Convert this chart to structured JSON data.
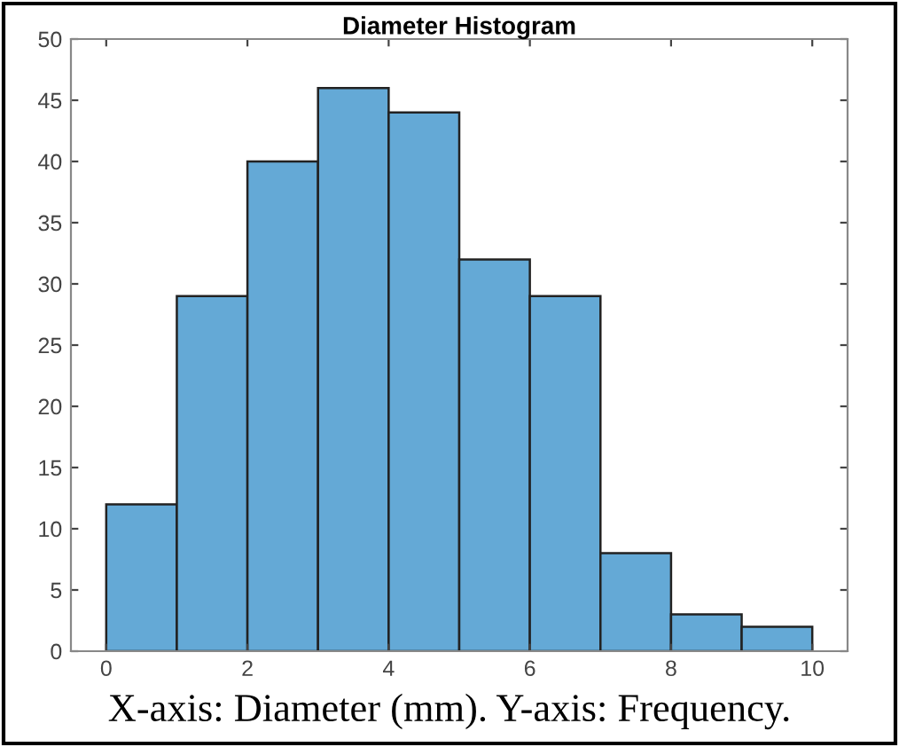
{
  "chart_data": {
    "type": "histogram",
    "title": "Diameter Histogram",
    "bins": [
      0,
      1,
      2,
      3,
      4,
      5,
      6,
      7,
      8,
      9,
      10
    ],
    "values": [
      12,
      29,
      40,
      46,
      44,
      32,
      29,
      8,
      3,
      2
    ],
    "color": "#64a9d6",
    "xlim": [
      -0.5,
      10.5
    ],
    "ylim": [
      0,
      50
    ],
    "xticks": [
      0,
      2,
      4,
      6,
      8,
      10
    ],
    "yticks": [
      0,
      5,
      10,
      15,
      20,
      25,
      30,
      35,
      40,
      45,
      50
    ],
    "grid": false,
    "annotations": [
      "X-axis: Diameter (mm). Y-axis: Frequency."
    ]
  }
}
